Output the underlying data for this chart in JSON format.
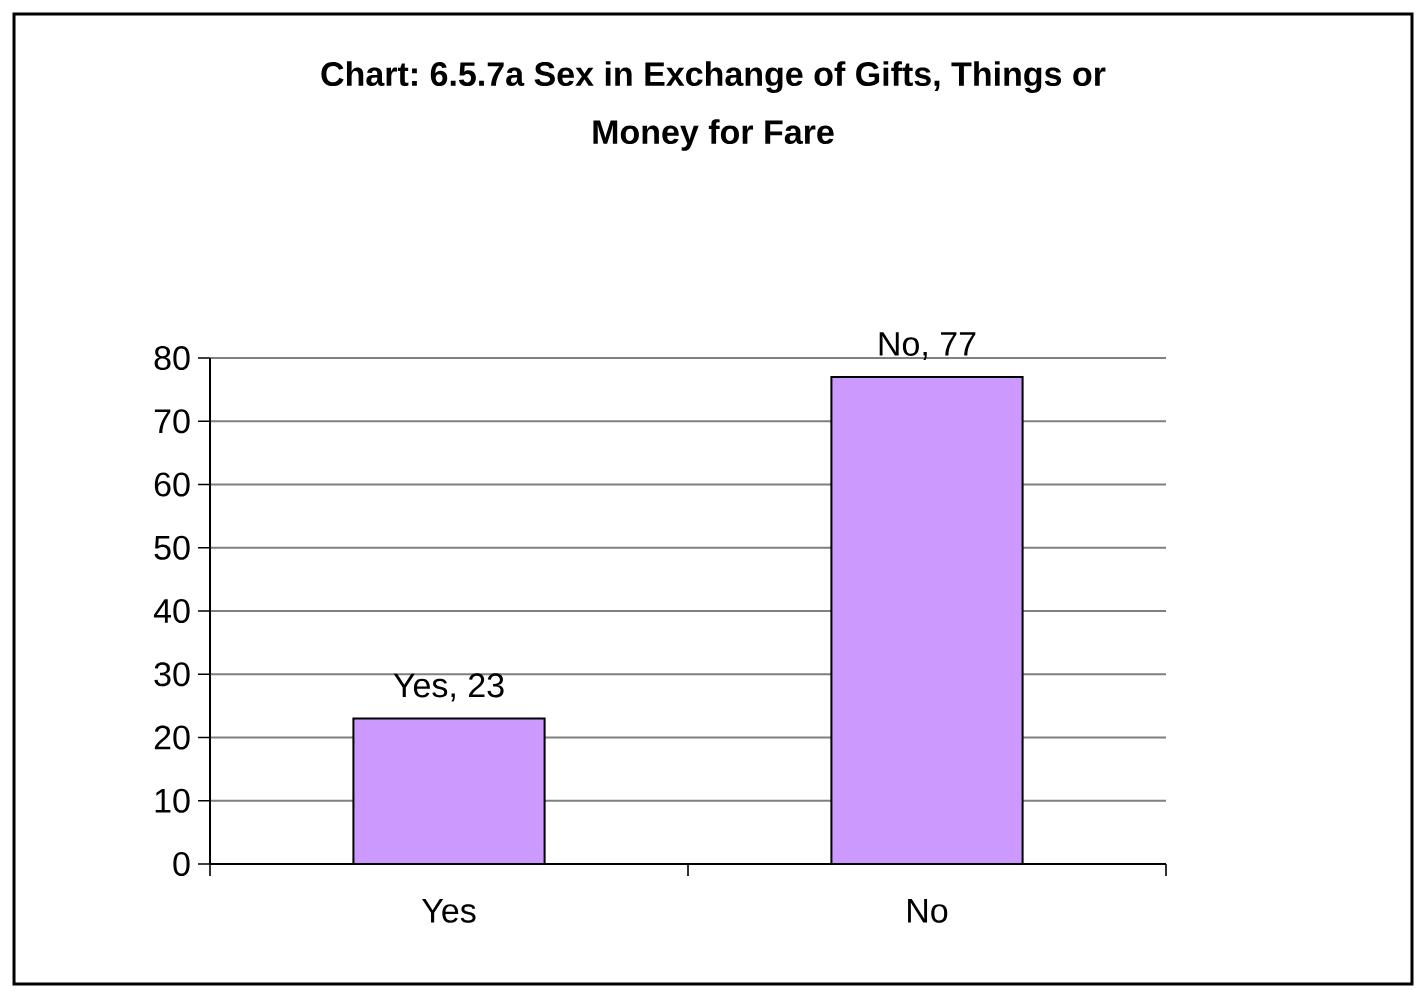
{
  "chart_data": {
    "type": "bar",
    "title": "Chart: 6.5.7a Sex in Exchange of Gifts, Things or Money for Fare",
    "categories": [
      "Yes",
      "No"
    ],
    "values": [
      23,
      77
    ],
    "value_labels": [
      "Yes, 23",
      "No, 77"
    ],
    "color": "#cc99ff",
    "ylim": [
      0,
      80
    ],
    "yticks": [
      0,
      10,
      20,
      30,
      40,
      50,
      60,
      70,
      80
    ],
    "grid": "y"
  }
}
